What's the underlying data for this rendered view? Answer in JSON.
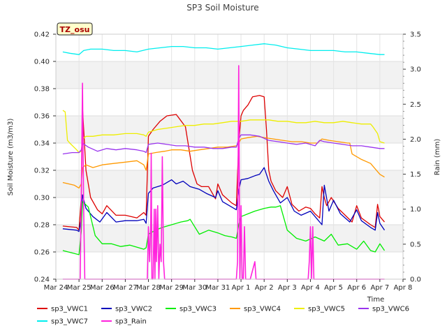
{
  "chart_data": {
    "type": "line",
    "title": "SP3 Soil Moisture",
    "xlabel": "Time",
    "ylabel": "Soil Moisture (m3/m3)",
    "y2label": "Rain (mm)",
    "badge": "TZ_osu",
    "x_ticks": [
      "Mar 24",
      "Mar 25",
      "Mar 26",
      "Mar 27",
      "Mar 28",
      "Mar 29",
      "Mar 30",
      "Mar 31",
      "Apr 1",
      "Apr 2",
      "Apr 3",
      "Apr 4",
      "Apr 5",
      "Apr 6",
      "Apr 7",
      "Apr 8"
    ],
    "y_ticks": [
      "0.24",
      "0.26",
      "0.28",
      "0.30",
      "0.32",
      "0.34",
      "0.36",
      "0.38",
      "0.40",
      "0.42"
    ],
    "y2_ticks": [
      "0.0",
      "0.5",
      "1.0",
      "1.5",
      "2.0",
      "2.5",
      "3.0",
      "3.5"
    ],
    "xlim": [
      0,
      15
    ],
    "ylim": [
      0.24,
      0.42
    ],
    "y2lim": [
      0,
      3.5
    ],
    "grid": true,
    "legend_position": "bottom",
    "series": [
      {
        "name": "sp3_VWC1",
        "color": "#dd0000",
        "axis": "left",
        "x": [
          0.3,
          0.9,
          1.0,
          1.1,
          1.15,
          1.3,
          1.5,
          1.8,
          2.0,
          2.2,
          2.6,
          3.0,
          3.5,
          3.8,
          3.9,
          4.0,
          4.2,
          4.5,
          4.8,
          5.2,
          5.6,
          5.9,
          6.1,
          6.3,
          6.6,
          6.9,
          7.0,
          7.2,
          7.6,
          7.8,
          7.9,
          8.0,
          8.1,
          8.3,
          8.5,
          8.8,
          9.0,
          9.1,
          9.2,
          9.3,
          9.5,
          9.8,
          10.0,
          10.2,
          10.5,
          10.8,
          11.0,
          11.2,
          11.4,
          11.5,
          11.6,
          11.7,
          11.9,
          12.2,
          12.5,
          12.8,
          13.0,
          13.2,
          13.6,
          13.8,
          13.9,
          14.0,
          14.2
        ],
        "y": [
          0.279,
          0.278,
          0.276,
          0.3,
          0.366,
          0.32,
          0.3,
          0.291,
          0.288,
          0.294,
          0.287,
          0.287,
          0.285,
          0.289,
          0.287,
          0.345,
          0.35,
          0.356,
          0.36,
          0.361,
          0.352,
          0.32,
          0.31,
          0.308,
          0.308,
          0.299,
          0.31,
          0.302,
          0.296,
          0.294,
          0.34,
          0.36,
          0.364,
          0.368,
          0.374,
          0.375,
          0.374,
          0.35,
          0.32,
          0.312,
          0.305,
          0.3,
          0.308,
          0.295,
          0.29,
          0.293,
          0.292,
          0.288,
          0.285,
          0.308,
          0.3,
          0.294,
          0.3,
          0.292,
          0.287,
          0.282,
          0.294,
          0.285,
          0.28,
          0.278,
          0.295,
          0.286,
          0.282
        ]
      },
      {
        "name": "sp3_VWC2",
        "color": "#0000bb",
        "axis": "left",
        "x": [
          0.3,
          0.9,
          1.0,
          1.1,
          1.15,
          1.3,
          1.6,
          1.9,
          2.2,
          2.6,
          3.0,
          3.5,
          3.8,
          3.9,
          4.0,
          4.2,
          4.6,
          5.0,
          5.2,
          5.5,
          5.8,
          6.2,
          6.5,
          6.9,
          7.0,
          7.2,
          7.6,
          7.8,
          7.9,
          8.0,
          8.3,
          8.6,
          8.8,
          9.0,
          9.2,
          9.4,
          9.7,
          10.0,
          10.3,
          10.6,
          11.0,
          11.3,
          11.5,
          11.6,
          11.8,
          12.0,
          12.3,
          12.7,
          13.0,
          13.2,
          13.6,
          13.8,
          13.9,
          14.0,
          14.2
        ],
        "y": [
          0.277,
          0.276,
          0.275,
          0.285,
          0.302,
          0.292,
          0.286,
          0.282,
          0.289,
          0.282,
          0.283,
          0.283,
          0.284,
          0.281,
          0.303,
          0.307,
          0.309,
          0.313,
          0.31,
          0.312,
          0.308,
          0.306,
          0.303,
          0.3,
          0.305,
          0.297,
          0.293,
          0.291,
          0.305,
          0.313,
          0.314,
          0.316,
          0.317,
          0.322,
          0.312,
          0.305,
          0.296,
          0.3,
          0.29,
          0.287,
          0.29,
          0.284,
          0.28,
          0.309,
          0.29,
          0.298,
          0.288,
          0.282,
          0.291,
          0.283,
          0.278,
          0.276,
          0.289,
          0.281,
          0.276
        ]
      },
      {
        "name": "sp3_VWC3",
        "color": "#00ee00",
        "axis": "left",
        "x": [
          0.3,
          1.0,
          1.1,
          1.15,
          1.4,
          1.7,
          2.0,
          2.4,
          2.8,
          3.2,
          3.6,
          3.8,
          3.9,
          4.0,
          4.3,
          4.6,
          5.0,
          5.4,
          5.7,
          5.8,
          6.2,
          6.6,
          7.0,
          7.3,
          7.6,
          7.8,
          7.9,
          8.0,
          8.3,
          8.6,
          9.0,
          9.3,
          9.5,
          9.7,
          10.0,
          10.4,
          10.8,
          11.2,
          11.6,
          11.9,
          12.2,
          12.6,
          13.0,
          13.3,
          13.6,
          13.8,
          14.0,
          14.2
        ],
        "y": [
          0.261,
          0.258,
          0.275,
          0.297,
          0.293,
          0.272,
          0.266,
          0.266,
          0.264,
          0.265,
          0.263,
          0.262,
          0.263,
          0.273,
          0.276,
          0.278,
          0.28,
          0.282,
          0.283,
          0.284,
          0.273,
          0.276,
          0.274,
          0.272,
          0.271,
          0.27,
          0.28,
          0.286,
          0.288,
          0.29,
          0.292,
          0.293,
          0.293,
          0.294,
          0.276,
          0.27,
          0.268,
          0.271,
          0.268,
          0.273,
          0.265,
          0.266,
          0.262,
          0.268,
          0.261,
          0.26,
          0.266,
          0.261
        ]
      },
      {
        "name": "sp3_VWC4",
        "color": "#ff9900",
        "axis": "left",
        "x": [
          0.3,
          0.8,
          1.0,
          1.1,
          1.15,
          1.3,
          1.6,
          2.0,
          2.5,
          3.0,
          3.5,
          3.8,
          3.9,
          4.0,
          4.3,
          4.7,
          5.0,
          5.4,
          5.8,
          6.2,
          6.6,
          7.0,
          7.4,
          7.8,
          7.9,
          8.0,
          8.3,
          8.7,
          9.0,
          9.4,
          9.8,
          10.2,
          10.6,
          11.0,
          11.3,
          11.5,
          11.8,
          12.2,
          12.6,
          12.7,
          12.8,
          13.2,
          13.6,
          14.0,
          14.2
        ],
        "y": [
          0.311,
          0.309,
          0.307,
          0.31,
          0.322,
          0.324,
          0.322,
          0.324,
          0.325,
          0.326,
          0.327,
          0.324,
          0.32,
          0.332,
          0.333,
          0.334,
          0.335,
          0.335,
          0.334,
          0.335,
          0.336,
          0.337,
          0.337,
          0.338,
          0.34,
          0.343,
          0.344,
          0.345,
          0.344,
          0.343,
          0.342,
          0.341,
          0.341,
          0.34,
          0.34,
          0.343,
          0.342,
          0.341,
          0.34,
          0.34,
          0.332,
          0.328,
          0.325,
          0.317,
          0.315
        ]
      },
      {
        "name": "sp3_VWC5",
        "color": "#eeee00",
        "axis": "left",
        "x": [
          0.3,
          0.4,
          0.5,
          0.6,
          0.9,
          1.0,
          1.1,
          1.15,
          1.3,
          1.6,
          2.0,
          2.5,
          3.0,
          3.5,
          3.8,
          3.9,
          4.0,
          4.4,
          4.8,
          5.2,
          5.6,
          6.0,
          6.4,
          6.8,
          7.2,
          7.6,
          8.0,
          8.4,
          8.8,
          9.2,
          9.6,
          10.0,
          10.4,
          10.8,
          11.2,
          11.6,
          12.0,
          12.4,
          12.8,
          13.2,
          13.6,
          13.7,
          13.9,
          14.0,
          14.2
        ],
        "y": [
          0.364,
          0.363,
          0.342,
          0.34,
          0.335,
          0.333,
          0.334,
          0.343,
          0.345,
          0.345,
          0.346,
          0.346,
          0.347,
          0.347,
          0.346,
          0.345,
          0.348,
          0.35,
          0.351,
          0.352,
          0.353,
          0.353,
          0.354,
          0.354,
          0.355,
          0.356,
          0.356,
          0.357,
          0.357,
          0.357,
          0.356,
          0.356,
          0.355,
          0.355,
          0.356,
          0.355,
          0.355,
          0.356,
          0.355,
          0.354,
          0.354,
          0.352,
          0.347,
          0.341,
          0.34
        ]
      },
      {
        "name": "sp3_VWC6",
        "color": "#9933ee",
        "axis": "left",
        "x": [
          0.3,
          0.7,
          1.0,
          1.1,
          1.15,
          1.4,
          1.8,
          2.2,
          2.6,
          3.0,
          3.5,
          3.8,
          3.9,
          4.0,
          4.4,
          4.8,
          5.2,
          5.6,
          6.0,
          6.4,
          6.8,
          7.2,
          7.6,
          7.8,
          7.9,
          8.0,
          8.4,
          8.8,
          9.2,
          9.6,
          10.0,
          10.4,
          10.8,
          11.2,
          11.4,
          11.6,
          12.0,
          12.4,
          12.8,
          13.2,
          13.6,
          14.0,
          14.2
        ],
        "y": [
          0.332,
          0.333,
          0.333,
          0.335,
          0.34,
          0.337,
          0.334,
          0.336,
          0.335,
          0.336,
          0.335,
          0.334,
          0.333,
          0.339,
          0.34,
          0.339,
          0.338,
          0.338,
          0.337,
          0.337,
          0.336,
          0.336,
          0.337,
          0.337,
          0.343,
          0.346,
          0.346,
          0.345,
          0.342,
          0.341,
          0.34,
          0.339,
          0.34,
          0.338,
          0.342,
          0.341,
          0.34,
          0.339,
          0.338,
          0.338,
          0.337,
          0.336,
          0.336
        ]
      },
      {
        "name": "sp3_VWC7",
        "color": "#00eeee",
        "axis": "left",
        "x": [
          0.3,
          0.6,
          1.0,
          1.2,
          1.5,
          2.0,
          2.5,
          3.0,
          3.5,
          4.0,
          4.5,
          5.0,
          5.5,
          6.0,
          6.5,
          7.0,
          7.5,
          8.0,
          8.5,
          9.0,
          9.5,
          10.0,
          10.5,
          11.0,
          11.5,
          12.0,
          12.5,
          13.0,
          13.5,
          14.0,
          14.2
        ],
        "y": [
          0.407,
          0.406,
          0.405,
          0.408,
          0.409,
          0.409,
          0.408,
          0.408,
          0.407,
          0.409,
          0.41,
          0.411,
          0.411,
          0.41,
          0.41,
          0.409,
          0.41,
          0.411,
          0.412,
          0.413,
          0.412,
          0.41,
          0.409,
          0.408,
          0.408,
          0.408,
          0.407,
          0.407,
          0.406,
          0.405,
          0.405
        ]
      },
      {
        "name": "sp3_Rain",
        "color": "#ff22dd",
        "axis": "right",
        "x": [
          0.3,
          1.05,
          1.1,
          1.15,
          1.2,
          1.25,
          3.95,
          4.0,
          4.05,
          4.1,
          4.12,
          4.15,
          4.2,
          4.25,
          4.28,
          4.32,
          4.35,
          4.4,
          4.45,
          4.5,
          4.55,
          4.6,
          4.65,
          4.7,
          4.75,
          4.8,
          7.8,
          7.85,
          7.9,
          7.95,
          8.0,
          8.05,
          8.1,
          8.15,
          8.2,
          8.25,
          8.3,
          8.35,
          8.4,
          8.6,
          8.65,
          8.7,
          10.9,
          10.95,
          11.0,
          11.05,
          11.1,
          11.15,
          14.2
        ],
        "y": [
          0.0,
          0.0,
          1.2,
          2.8,
          1.0,
          0.0,
          0.0,
          0.75,
          0.25,
          0.75,
          1.8,
          0.0,
          0.0,
          1.0,
          0.0,
          1.0,
          0.25,
          1.05,
          0.0,
          0.5,
          0.25,
          1.75,
          0.25,
          0.0,
          0.0,
          0.0,
          0.0,
          0.25,
          3.05,
          0.0,
          1.05,
          0.0,
          0.0,
          0.75,
          0.0,
          0.0,
          0.0,
          0.0,
          0.0,
          0.25,
          0.0,
          0.0,
          0.0,
          0.25,
          0.75,
          0.0,
          0.75,
          0.0,
          0.0
        ]
      }
    ]
  }
}
